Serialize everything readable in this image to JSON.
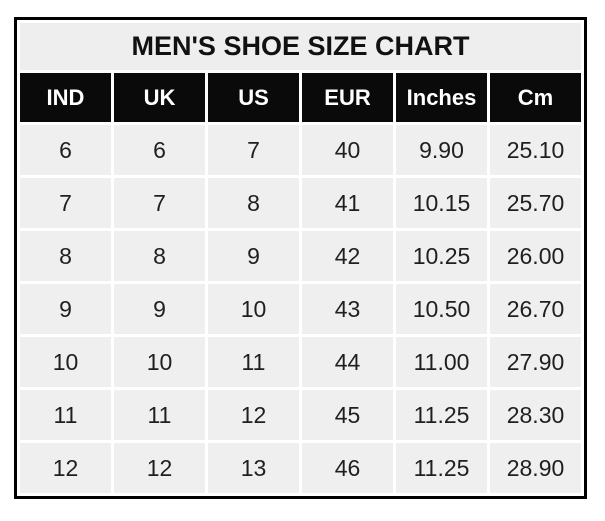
{
  "chart_data": {
    "type": "table",
    "title": "MEN'S SHOE SIZE CHART",
    "columns": [
      "IND",
      "UK",
      "US",
      "EUR",
      "Inches",
      "Cm"
    ],
    "rows": [
      [
        "6",
        "6",
        "7",
        "40",
        "9.90",
        "25.10"
      ],
      [
        "7",
        "7",
        "8",
        "41",
        "10.15",
        "25.70"
      ],
      [
        "8",
        "8",
        "9",
        "42",
        "10.25",
        "26.00"
      ],
      [
        "9",
        "9",
        "10",
        "43",
        "10.50",
        "26.70"
      ],
      [
        "10",
        "10",
        "11",
        "44",
        "11.00",
        "27.90"
      ],
      [
        "11",
        "11",
        "12",
        "45",
        "11.25",
        "28.30"
      ],
      [
        "12",
        "12",
        "13",
        "46",
        "11.25",
        "28.90"
      ]
    ],
    "layout": {
      "legend": "none",
      "grid": "white gridlines between cells",
      "title_position": "top, centered, full-width band"
    },
    "colors": {
      "outer_border": "#000000",
      "header_bg": "#0a0a0a",
      "header_text": "#ffffff",
      "cell_bg": "#efefef",
      "grid": "#ffffff",
      "title_bg": "#eeeeee",
      "title_text": "#111111",
      "body_text": "#1f1f1f",
      "page_bg": "#ffffff"
    }
  }
}
